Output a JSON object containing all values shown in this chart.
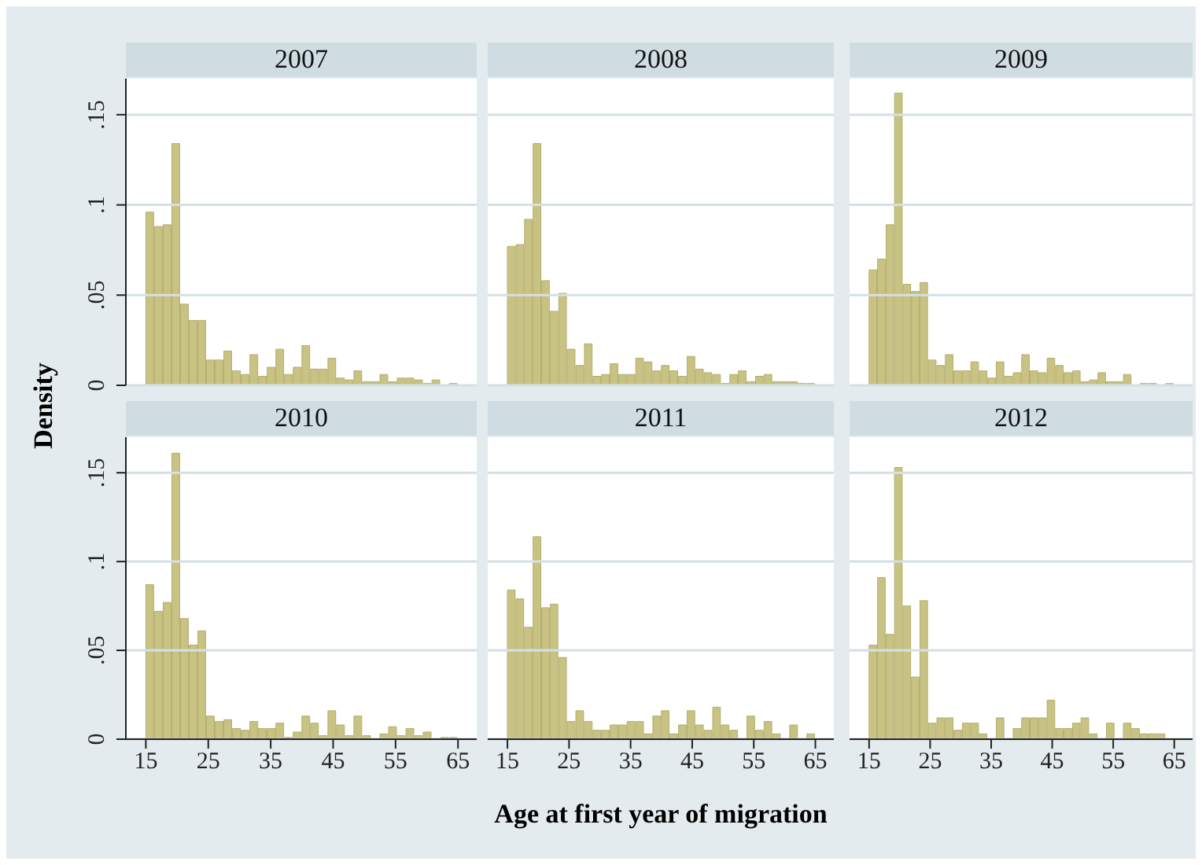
{
  "chart_data": [
    {
      "type": "histogram",
      "title": "2007",
      "ylabel": "Density",
      "tick_labels": "y",
      "grid": "y",
      "color": "#c8c283",
      "xlim": [
        11.8,
        68
      ],
      "xticks": [
        15,
        25,
        35,
        45,
        55,
        65
      ],
      "ylim": [
        0,
        0.17
      ],
      "yticks": [
        0,
        {
          "value": 0.05,
          "label": ".05"
        },
        {
          "value": 0.1,
          "label": ".1"
        },
        {
          "value": 0.15,
          "label": ".15"
        }
      ],
      "bins": [
        15,
        16.39,
        17.78,
        19.17,
        20.56,
        21.94,
        23.33,
        24.72,
        26.11,
        27.5,
        28.89,
        30.28,
        31.67,
        33.06,
        34.44,
        35.83,
        37.22,
        38.61,
        40,
        41.39,
        42.78,
        44.17,
        45.56,
        46.94,
        48.33,
        49.72,
        51.11,
        52.5,
        53.89,
        55.28,
        56.67,
        58.06,
        59.44,
        60.83,
        62.22,
        63.61,
        65
      ],
      "values": [
        0.096,
        0.088,
        0.089,
        0.134,
        0.045,
        0.036,
        0.036,
        0.014,
        0.014,
        0.019,
        0.008,
        0.006,
        0.017,
        0.005,
        0.01,
        0.02,
        0.006,
        0.01,
        0.022,
        0.009,
        0.009,
        0.015,
        0.004,
        0.003,
        0.008,
        0.002,
        0.002,
        0.006,
        0.002,
        0.004,
        0.004,
        0.003,
        0.001,
        0.003,
        0,
        0.001
      ]
    },
    {
      "type": "histogram",
      "title": "2008",
      "tick_labels": false,
      "grid": "y",
      "color": "#c8c283",
      "xlim": [
        11.8,
        68
      ],
      "xticks": [
        15,
        25,
        35,
        45,
        55,
        65
      ],
      "ylim": [
        0,
        0.17
      ],
      "yticks": [
        0,
        0.05,
        0.1,
        0.15
      ],
      "bins": [
        15,
        16.39,
        17.78,
        19.17,
        20.56,
        21.94,
        23.33,
        24.72,
        26.11,
        27.5,
        28.89,
        30.28,
        31.67,
        33.06,
        34.44,
        35.83,
        37.22,
        38.61,
        40,
        41.39,
        42.78,
        44.17,
        45.56,
        46.94,
        48.33,
        49.72,
        51.11,
        52.5,
        53.89,
        55.28,
        56.67,
        58.06,
        59.44,
        60.83,
        62.22,
        63.61,
        65
      ],
      "values": [
        0.077,
        0.078,
        0.092,
        0.134,
        0.058,
        0.041,
        0.051,
        0.02,
        0.011,
        0.023,
        0.005,
        0.006,
        0.012,
        0.006,
        0.006,
        0.015,
        0.013,
        0.008,
        0.011,
        0.008,
        0.005,
        0.016,
        0.009,
        0.007,
        0.006,
        0.001,
        0.006,
        0.008,
        0.002,
        0.005,
        0.006,
        0.002,
        0.002,
        0.002,
        0.001,
        0.001
      ]
    },
    {
      "type": "histogram",
      "title": "2009",
      "tick_labels": false,
      "grid": "y",
      "color": "#c8c283",
      "xlim": [
        11.8,
        68
      ],
      "xticks": [
        15,
        25,
        35,
        45,
        55,
        65
      ],
      "ylim": [
        0,
        0.17
      ],
      "yticks": [
        0,
        0.05,
        0.1,
        0.15
      ],
      "bins": [
        15,
        16.39,
        17.78,
        19.17,
        20.56,
        21.94,
        23.33,
        24.72,
        26.11,
        27.5,
        28.89,
        30.28,
        31.67,
        33.06,
        34.44,
        35.83,
        37.22,
        38.61,
        40,
        41.39,
        42.78,
        44.17,
        45.56,
        46.94,
        48.33,
        49.72,
        51.11,
        52.5,
        53.89,
        55.28,
        56.67,
        58.06,
        59.44,
        60.83,
        62.22,
        63.61,
        65
      ],
      "values": [
        0.064,
        0.07,
        0.089,
        0.162,
        0.056,
        0.052,
        0.057,
        0.014,
        0.011,
        0.017,
        0.008,
        0.008,
        0.013,
        0.008,
        0.004,
        0.013,
        0.005,
        0.007,
        0.017,
        0.008,
        0.007,
        0.015,
        0.011,
        0.007,
        0.008,
        0.002,
        0.003,
        0.007,
        0.002,
        0.002,
        0.006,
        0,
        0.001,
        0.001,
        0,
        0.001
      ]
    },
    {
      "type": "histogram",
      "title": "2010",
      "grid": "y",
      "color": "#c8c283",
      "xlim": [
        11.8,
        68
      ],
      "xticks": [
        15,
        25,
        35,
        45,
        55,
        65
      ],
      "ylim": [
        0,
        0.17
      ],
      "yticks": [
        0,
        {
          "value": 0.05,
          "label": ".05"
        },
        {
          "value": 0.1,
          "label": ".1"
        },
        {
          "value": 0.15,
          "label": ".15"
        }
      ],
      "bins": [
        15,
        16.39,
        17.78,
        19.17,
        20.56,
        21.94,
        23.33,
        24.72,
        26.11,
        27.5,
        28.89,
        30.28,
        31.67,
        33.06,
        34.44,
        35.83,
        37.22,
        38.61,
        40,
        41.39,
        42.78,
        44.17,
        45.56,
        46.94,
        48.33,
        49.72,
        51.11,
        52.5,
        53.89,
        55.28,
        56.67,
        58.06,
        59.44,
        60.83,
        62.22,
        63.61,
        65
      ],
      "values": [
        0.087,
        0.072,
        0.077,
        0.161,
        0.068,
        0.053,
        0.061,
        0.013,
        0.01,
        0.011,
        0.006,
        0.005,
        0.01,
        0.006,
        0.006,
        0.009,
        0.001,
        0.004,
        0.013,
        0.009,
        0.002,
        0.016,
        0.008,
        0.002,
        0.013,
        0.002,
        0,
        0.003,
        0.007,
        0.002,
        0.006,
        0.002,
        0.004,
        0,
        0.001,
        0.001
      ]
    },
    {
      "type": "histogram",
      "title": "2011",
      "xlabel": "Age at first year of migration",
      "tick_labels": "x",
      "grid": "y",
      "color": "#c8c283",
      "xlim": [
        11.8,
        68
      ],
      "xticks": [
        15,
        25,
        35,
        45,
        55,
        65
      ],
      "ylim": [
        0,
        0.17
      ],
      "yticks": [
        0,
        0.05,
        0.1,
        0.15
      ],
      "bins": [
        15,
        16.39,
        17.78,
        19.17,
        20.56,
        21.94,
        23.33,
        24.72,
        26.11,
        27.5,
        28.89,
        30.28,
        31.67,
        33.06,
        34.44,
        35.83,
        37.22,
        38.61,
        40,
        41.39,
        42.78,
        44.17,
        45.56,
        46.94,
        48.33,
        49.72,
        51.11,
        52.5,
        53.89,
        55.28,
        56.67,
        58.06,
        59.44,
        60.83,
        62.22,
        63.61,
        65
      ],
      "values": [
        0.084,
        0.079,
        0.063,
        0.114,
        0.074,
        0.076,
        0.046,
        0.01,
        0.016,
        0.01,
        0.005,
        0.005,
        0.008,
        0.008,
        0.01,
        0.01,
        0.003,
        0.013,
        0.016,
        0.003,
        0.008,
        0.016,
        0.008,
        0.005,
        0.018,
        0.008,
        0.005,
        0,
        0.013,
        0.005,
        0.01,
        0.003,
        0,
        0.008,
        0,
        0.003
      ]
    },
    {
      "type": "histogram",
      "title": "2012",
      "tick_labels": "x",
      "grid": "y",
      "color": "#c8c283",
      "xlim": [
        11.8,
        68
      ],
      "xticks": [
        15,
        25,
        35,
        45,
        55,
        65
      ],
      "ylim": [
        0,
        0.17
      ],
      "yticks": [
        0,
        0.05,
        0.1,
        0.15
      ],
      "bins": [
        15,
        16.39,
        17.78,
        19.17,
        20.56,
        21.94,
        23.33,
        24.72,
        26.11,
        27.5,
        28.89,
        30.28,
        31.67,
        33.06,
        34.44,
        35.83,
        37.22,
        38.61,
        40,
        41.39,
        42.78,
        44.17,
        45.56,
        46.94,
        48.33,
        49.72,
        51.11,
        52.5,
        53.89,
        55.28,
        56.67,
        58.06,
        59.44,
        60.83,
        62.22,
        63.61,
        65
      ],
      "values": [
        0.053,
        0.091,
        0.059,
        0.153,
        0.075,
        0.035,
        0.078,
        0.009,
        0.012,
        0.012,
        0.005,
        0.009,
        0.009,
        0.003,
        0,
        0.012,
        0,
        0.006,
        0.012,
        0.012,
        0.012,
        0.022,
        0.006,
        0.006,
        0.009,
        0.012,
        0.003,
        0,
        0.009,
        0,
        0.009,
        0.006,
        0.003,
        0.003,
        0.003,
        0
      ]
    }
  ]
}
